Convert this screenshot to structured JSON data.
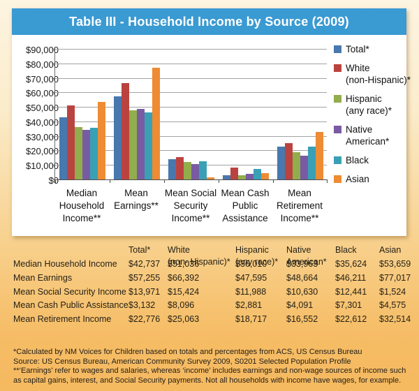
{
  "header": {
    "title": "Table III - Household Income by Source (2009)"
  },
  "chart_data": {
    "type": "bar",
    "title": "Table III - Household Income by Source (2009)",
    "categories": [
      "Median Household Income**",
      "Mean Earnings**",
      "Mean Social Security Income**",
      "Mean Cash Public Assistance",
      "Mean Retirement Income**"
    ],
    "category_lines": [
      [
        "Median",
        "Household",
        "Income**"
      ],
      [
        "Mean",
        "Earnings**"
      ],
      [
        "Mean Social",
        "Security",
        "Income**"
      ],
      [
        "Mean Cash",
        "Public",
        "Assistance"
      ],
      [
        "Mean",
        "Retirement",
        "Income**"
      ]
    ],
    "series": [
      {
        "name": "Total*",
        "name_lines": [
          "Total*"
        ],
        "color": "#4878ae",
        "values": [
          42737,
          57255,
          13971,
          3132,
          22776
        ]
      },
      {
        "name": "White (non-Hispanic)*",
        "name_lines": [
          "White",
          "(non-Hispanic)*"
        ],
        "color": "#bb433f",
        "values": [
          51036,
          66392,
          15424,
          8096,
          25063
        ]
      },
      {
        "name": "Hispanic (any race)*",
        "name_lines": [
          "Hispanic",
          "(any race)*"
        ],
        "color": "#92ad4c",
        "values": [
          36010,
          47595,
          11988,
          2881,
          18717
        ]
      },
      {
        "name": "Native American*",
        "name_lines": [
          "Native",
          "American*"
        ],
        "color": "#795ba3",
        "values": [
          33963,
          48664,
          10630,
          4091,
          16552
        ]
      },
      {
        "name": "Black",
        "name_lines": [
          "Black"
        ],
        "color": "#3aa0b5",
        "values": [
          35624,
          46211,
          12441,
          7301,
          22612
        ]
      },
      {
        "name": "Asian",
        "name_lines": [
          "Asian"
        ],
        "color": "#ee8b33",
        "values": [
          53659,
          77017,
          1524,
          4575,
          32514
        ]
      }
    ],
    "ylim": [
      0,
      90000
    ],
    "ytick_step": 10000,
    "ytick_labels": [
      "$0",
      "$10,000",
      "$20,000",
      "$30,000",
      "$40,000",
      "$50,000",
      "$60,000",
      "$70,000",
      "$80,000",
      "$90,000"
    ],
    "xlabel": "",
    "ylabel": "",
    "grid": true,
    "legend_position": "right"
  },
  "table": {
    "columns": [
      {
        "lines": [
          "Total*"
        ]
      },
      {
        "lines": [
          "White",
          "(non- Hispanic)*"
        ]
      },
      {
        "lines": [
          "Hispanic",
          "(any race)*"
        ]
      },
      {
        "lines": [
          "Native",
          "American*"
        ]
      },
      {
        "lines": [
          "Black"
        ]
      },
      {
        "lines": [
          "Asian"
        ]
      }
    ],
    "rows": [
      {
        "label": "Median Household Income",
        "values": [
          "$42,737",
          "$51,036",
          "$36,010",
          "$33,963",
          "$35,624",
          "$53,659"
        ]
      },
      {
        "label": "Mean Earnings",
        "values": [
          "$57,255",
          "$66,392",
          "$47,595",
          "$48,664",
          "$46,211",
          "$77,017"
        ]
      },
      {
        "label": "Mean Social Security Income",
        "values": [
          "$13,971",
          "$15,424",
          "$11,988",
          "$10,630",
          "$12,441",
          "$1,524"
        ]
      },
      {
        "label": "Mean Cash Public Assistance",
        "values": [
          "$3,132",
          "$8,096",
          "$2,881",
          "$4,091",
          "$7,301",
          "$4,575"
        ]
      },
      {
        "label": "Mean Retirement Income",
        "values": [
          "$22,776",
          "$25,063",
          "$18,717",
          "$16,552",
          "$22,612",
          "$32,514"
        ]
      }
    ]
  },
  "footnotes": [
    "*Calculated by NM Voices for Children based on totals and percentages from ACS, US Census Bureau",
    "Source: US Census Bureau, American Community Survey 2009, S0201 Selected Population Profile",
    "**‘Earnings’ refer to wages and salaries, whereas ‘income’ includes earnings and non-wage sources of income such as capital gains, interest, and Social Security payments. Not all households with income have wages, for example."
  ]
}
